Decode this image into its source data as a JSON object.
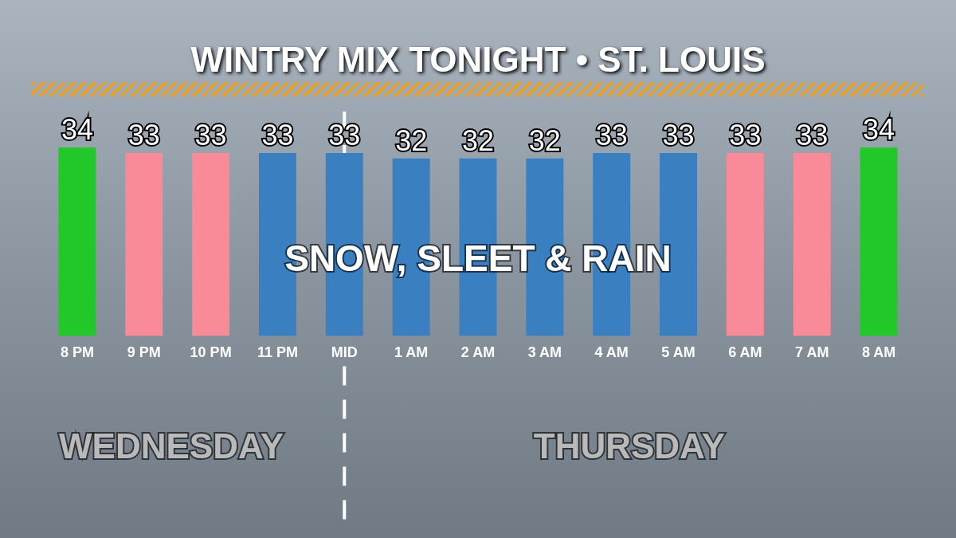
{
  "chart_data": {
    "type": "bar",
    "title": "WINTRY MIX TONIGHT • ST. LOUIS",
    "categories": [
      "8 PM",
      "9 PM",
      "10 PM",
      "11 PM",
      "MID",
      "1 AM",
      "2 AM",
      "3 AM",
      "4 AM",
      "5 AM",
      "6 AM",
      "7 AM",
      "8 AM"
    ],
    "values": [
      34,
      33,
      33,
      33,
      33,
      32,
      32,
      32,
      33,
      33,
      33,
      33,
      34
    ],
    "colors": [
      "#22c82a",
      "#f98a97",
      "#f98a97",
      "#3a7fc0",
      "#3a7fc0",
      "#3a7fc0",
      "#3a7fc0",
      "#3a7fc0",
      "#3a7fc0",
      "#3a7fc0",
      "#f98a97",
      "#f98a97",
      "#22c82a"
    ],
    "tick_labels": "x",
    "grid": false,
    "legend": false,
    "data_labels": true,
    "ref_lines": [
      {
        "axis": "x",
        "value": "MID",
        "line_style": "dashed",
        "color": "#ffffff"
      }
    ],
    "annotations": [
      "SNOW, SLEET & RAIN",
      "WEDNESDAY",
      "THURSDAY"
    ]
  }
}
